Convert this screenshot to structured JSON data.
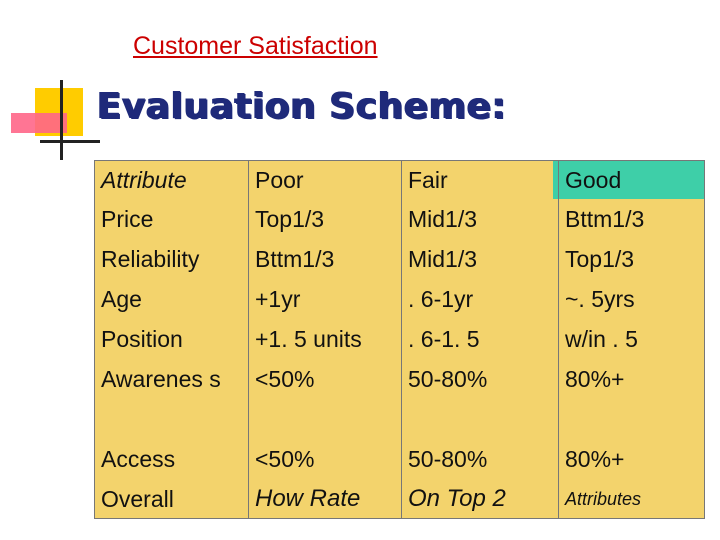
{
  "header": {
    "top_title": "Customer Satisfaction",
    "heading": "Evaluation Scheme:"
  },
  "table": {
    "columns": [
      "Attribute",
      "Poor",
      "Fair",
      "Good"
    ],
    "rows": [
      [
        "Price",
        "Top1/3",
        "Mid1/3",
        "Bttm1/3"
      ],
      [
        "Reliability",
        "Bttm1/3",
        "Mid1/3",
        "Top1/3"
      ],
      [
        "Age",
        "+1yr",
        ". 6-1yr",
        "~. 5yrs"
      ],
      [
        "Position",
        "+1. 5 units",
        ". 6-1. 5",
        "w/in . 5"
      ],
      [
        "Awarenes s",
        "<50%",
        "50-80%",
        "80%+"
      ],
      [
        "Access",
        "<50%",
        "50-80%",
        "80%+"
      ],
      [
        "Overall",
        "How Rate",
        "On Top 2",
        "Attributes"
      ]
    ]
  },
  "colors": {
    "table_bg": "#f3d36c",
    "header_accent": "#3ecfa8",
    "title_red": "#cc0000",
    "heading_blue": "#1f2a7a"
  }
}
